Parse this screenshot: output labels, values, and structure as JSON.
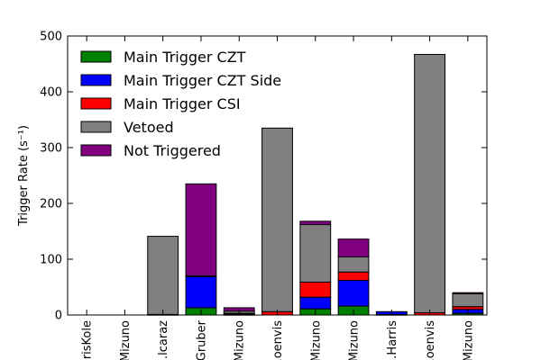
{
  "chart_data": {
    "type": "bar",
    "stacked": true,
    "title": "",
    "xlabel": "",
    "ylabel": "Trigger Rate (s⁻¹)",
    "ylim": [
      0,
      500
    ],
    "yticks": [
      0,
      100,
      200,
      300,
      400,
      500
    ],
    "grid": false,
    "legend_position": "top-left",
    "categories": [
      "...risKole",
      "...Mizuno",
      "...lcaraz",
      "...Gruber",
      "...Mizuno",
      "...oenvis",
      "...Mizuno",
      "...Mizuno",
      "...Harris",
      "...oenvis",
      "...Mizuno"
    ],
    "series": [
      {
        "name": "Main Trigger CZT",
        "color": "#008000",
        "values": [
          0,
          0,
          1,
          13,
          1,
          0,
          11,
          16,
          1,
          0,
          3
        ]
      },
      {
        "name": "Main Trigger CZT Side",
        "color": "#0000ff",
        "values": [
          0,
          0,
          0,
          56,
          1,
          0,
          21,
          46,
          5,
          0,
          7
        ]
      },
      {
        "name": "Main Trigger CSI",
        "color": "#ff0000",
        "values": [
          0,
          0,
          0,
          1,
          1,
          6,
          27,
          15,
          0,
          4,
          5
        ]
      },
      {
        "name": "Vetoed",
        "color": "#808080",
        "values": [
          0,
          0,
          140,
          0,
          4,
          329,
          103,
          27,
          0,
          463,
          23
        ]
      },
      {
        "name": "Not Triggered",
        "color": "#800080",
        "values": [
          0,
          0,
          0,
          165,
          6,
          0,
          6,
          32,
          0,
          0,
          2
        ]
      }
    ]
  }
}
